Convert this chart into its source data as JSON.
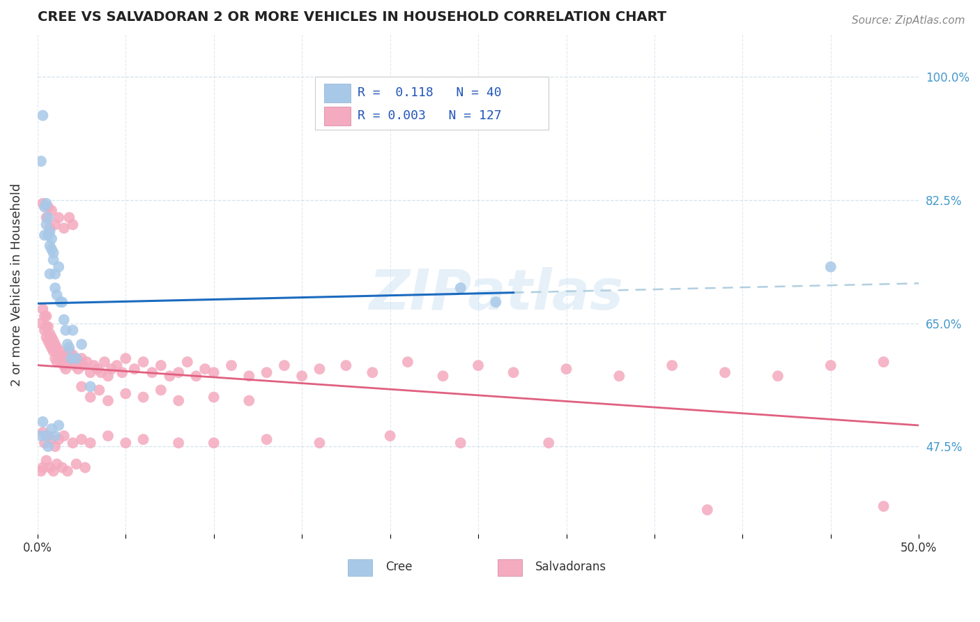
{
  "title": "CREE VS SALVADORAN 2 OR MORE VEHICLES IN HOUSEHOLD CORRELATION CHART",
  "source": "Source: ZipAtlas.com",
  "ylabel": "2 or more Vehicles in Household",
  "ytick_labels": [
    "47.5%",
    "65.0%",
    "82.5%",
    "100.0%"
  ],
  "ytick_values": [
    0.475,
    0.65,
    0.825,
    1.0
  ],
  "xlim": [
    0.0,
    0.5
  ],
  "ylim": [
    0.35,
    1.06
  ],
  "cree_color": "#a8c8e8",
  "salvadoran_color": "#f4aabf",
  "cree_line_color": "#1a6bbf",
  "salvadoran_line_color": "#e06080",
  "dash_line_color": "#b0cfe0",
  "watermark": "ZIPatlas",
  "legend_R_cree": "0.118",
  "legend_N_cree": "40",
  "legend_R_salv": "0.003",
  "legend_N_salv": "127",
  "cree_x": [
    0.002,
    0.003,
    0.004,
    0.004,
    0.005,
    0.005,
    0.006,
    0.006,
    0.007,
    0.007,
    0.007,
    0.008,
    0.008,
    0.009,
    0.009,
    0.01,
    0.01,
    0.011,
    0.012,
    0.013,
    0.014,
    0.015,
    0.016,
    0.017,
    0.018,
    0.019,
    0.02,
    0.022,
    0.025,
    0.03,
    0.002,
    0.003,
    0.005,
    0.006,
    0.008,
    0.01,
    0.012,
    0.24,
    0.26,
    0.45
  ],
  "cree_y": [
    0.88,
    0.945,
    0.775,
    0.815,
    0.79,
    0.82,
    0.775,
    0.8,
    0.76,
    0.78,
    0.72,
    0.755,
    0.77,
    0.75,
    0.74,
    0.72,
    0.7,
    0.69,
    0.73,
    0.68,
    0.68,
    0.655,
    0.64,
    0.62,
    0.615,
    0.6,
    0.64,
    0.6,
    0.62,
    0.56,
    0.49,
    0.51,
    0.49,
    0.475,
    0.5,
    0.49,
    0.505,
    0.7,
    0.68,
    0.73
  ],
  "salv_x": [
    0.002,
    0.003,
    0.004,
    0.004,
    0.005,
    0.005,
    0.005,
    0.006,
    0.006,
    0.007,
    0.007,
    0.008,
    0.008,
    0.009,
    0.009,
    0.01,
    0.01,
    0.011,
    0.011,
    0.012,
    0.013,
    0.013,
    0.014,
    0.015,
    0.015,
    0.016,
    0.017,
    0.018,
    0.019,
    0.02,
    0.021,
    0.022,
    0.023,
    0.024,
    0.025,
    0.026,
    0.028,
    0.03,
    0.032,
    0.034,
    0.036,
    0.038,
    0.04,
    0.042,
    0.045,
    0.048,
    0.05,
    0.055,
    0.06,
    0.065,
    0.07,
    0.075,
    0.08,
    0.085,
    0.09,
    0.095,
    0.1,
    0.11,
    0.12,
    0.13,
    0.14,
    0.15,
    0.16,
    0.175,
    0.19,
    0.21,
    0.23,
    0.25,
    0.27,
    0.3,
    0.33,
    0.36,
    0.39,
    0.42,
    0.45,
    0.48,
    0.003,
    0.005,
    0.006,
    0.007,
    0.008,
    0.01,
    0.012,
    0.015,
    0.018,
    0.02,
    0.025,
    0.03,
    0.035,
    0.04,
    0.05,
    0.06,
    0.07,
    0.08,
    0.1,
    0.12,
    0.003,
    0.004,
    0.006,
    0.008,
    0.01,
    0.012,
    0.015,
    0.02,
    0.025,
    0.03,
    0.04,
    0.05,
    0.06,
    0.08,
    0.1,
    0.13,
    0.16,
    0.2,
    0.24,
    0.29,
    0.002,
    0.003,
    0.005,
    0.007,
    0.009,
    0.011,
    0.014,
    0.017,
    0.022,
    0.027,
    0.38,
    0.48
  ],
  "salv_y": [
    0.65,
    0.67,
    0.64,
    0.66,
    0.645,
    0.66,
    0.63,
    0.625,
    0.645,
    0.62,
    0.635,
    0.615,
    0.63,
    0.625,
    0.61,
    0.62,
    0.6,
    0.615,
    0.595,
    0.6,
    0.61,
    0.595,
    0.605,
    0.59,
    0.6,
    0.585,
    0.605,
    0.61,
    0.595,
    0.605,
    0.59,
    0.6,
    0.585,
    0.595,
    0.6,
    0.59,
    0.595,
    0.58,
    0.59,
    0.585,
    0.58,
    0.595,
    0.575,
    0.585,
    0.59,
    0.58,
    0.6,
    0.585,
    0.595,
    0.58,
    0.59,
    0.575,
    0.58,
    0.595,
    0.575,
    0.585,
    0.58,
    0.59,
    0.575,
    0.58,
    0.59,
    0.575,
    0.585,
    0.59,
    0.58,
    0.595,
    0.575,
    0.59,
    0.58,
    0.585,
    0.575,
    0.59,
    0.58,
    0.575,
    0.59,
    0.595,
    0.82,
    0.8,
    0.815,
    0.785,
    0.81,
    0.79,
    0.8,
    0.785,
    0.8,
    0.79,
    0.56,
    0.545,
    0.555,
    0.54,
    0.55,
    0.545,
    0.555,
    0.54,
    0.545,
    0.54,
    0.495,
    0.48,
    0.49,
    0.485,
    0.475,
    0.485,
    0.49,
    0.48,
    0.485,
    0.48,
    0.49,
    0.48,
    0.485,
    0.48,
    0.48,
    0.485,
    0.48,
    0.49,
    0.48,
    0.48,
    0.44,
    0.445,
    0.455,
    0.445,
    0.44,
    0.45,
    0.445,
    0.44,
    0.45,
    0.445,
    0.385,
    0.39
  ]
}
